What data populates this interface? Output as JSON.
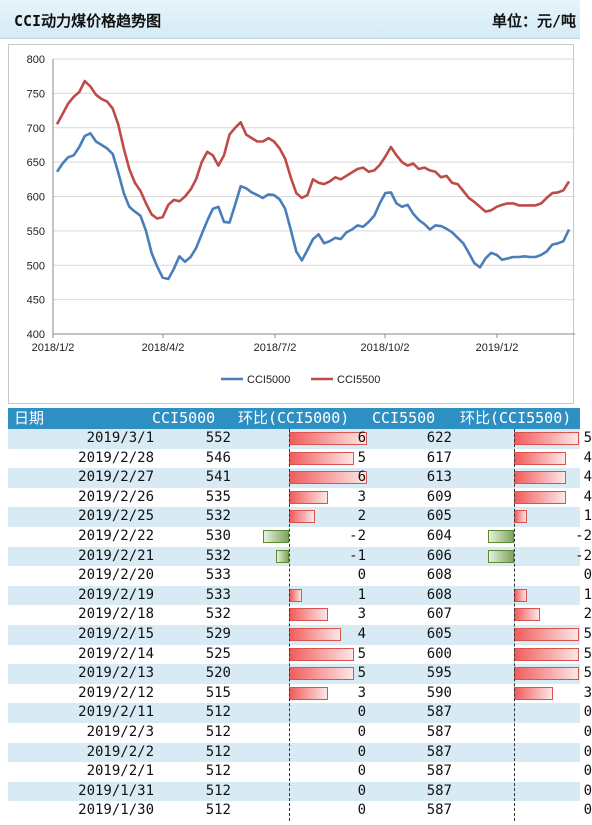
{
  "header": {
    "title": "CCI动力煤价格趋势图",
    "unit": "单位：元/吨"
  },
  "chart_data": {
    "type": "line",
    "x_ticks": [
      "2018/1/2",
      "2018/4/2",
      "2018/7/2",
      "2018/10/2",
      "2019/1/2"
    ],
    "ylim": [
      400,
      800
    ],
    "y_ticks": [
      "800",
      "750",
      "700",
      "650",
      "600",
      "550",
      "500",
      "450",
      "400"
    ],
    "grid": true,
    "legend_position": "bottom",
    "series": [
      {
        "name": "CCI5000",
        "color": "#4a7ebb",
        "values": [
          636,
          648,
          657,
          660,
          672,
          688,
          692,
          680,
          675,
          670,
          662,
          635,
          605,
          585,
          578,
          572,
          550,
          518,
          498,
          482,
          480,
          495,
          513,
          505,
          512,
          525,
          545,
          565,
          582,
          585,
          563,
          562,
          588,
          615,
          612,
          606,
          602,
          598,
          603,
          602,
          596,
          582,
          552,
          520,
          507,
          522,
          538,
          545,
          532,
          535,
          540,
          538,
          548,
          552,
          558,
          556,
          563,
          572,
          590,
          605,
          606,
          590,
          585,
          588,
          575,
          566,
          560,
          552,
          558,
          557,
          553,
          548,
          540,
          532,
          518,
          503,
          497,
          510,
          518,
          515,
          508,
          510,
          512,
          512,
          513,
          512,
          512,
          515,
          520,
          530,
          532,
          535,
          552
        ]
      },
      {
        "name": "CCI5500",
        "color": "#be4b48",
        "values": [
          705,
          720,
          735,
          745,
          752,
          768,
          760,
          748,
          742,
          738,
          728,
          705,
          670,
          640,
          620,
          608,
          590,
          574,
          568,
          570,
          588,
          595,
          593,
          600,
          610,
          625,
          650,
          665,
          660,
          645,
          660,
          690,
          700,
          708,
          690,
          685,
          680,
          680,
          685,
          680,
          670,
          655,
          628,
          605,
          598,
          602,
          625,
          620,
          618,
          622,
          628,
          625,
          630,
          635,
          640,
          642,
          636,
          638,
          646,
          658,
          672,
          660,
          650,
          645,
          648,
          640,
          642,
          638,
          636,
          628,
          630,
          620,
          618,
          608,
          598,
          592,
          585,
          578,
          580,
          585,
          588,
          590,
          590,
          587,
          587,
          587,
          587,
          590,
          598,
          605,
          606,
          609,
          622
        ]
      }
    ]
  },
  "table": {
    "headers": [
      "日期",
      "CCI5000",
      "环比(CCI5000)",
      "CCI5500",
      "环比(CCI5500)"
    ],
    "rows": [
      {
        "date": "2019/3/1",
        "cci5000": "552",
        "chg5000": "6",
        "cci5500": "622",
        "chg5500": "5"
      },
      {
        "date": "2019/2/28",
        "cci5000": "546",
        "chg5000": "5",
        "cci5500": "617",
        "chg5500": "4"
      },
      {
        "date": "2019/2/27",
        "cci5000": "541",
        "chg5000": "6",
        "cci5500": "613",
        "chg5500": "4"
      },
      {
        "date": "2019/2/26",
        "cci5000": "535",
        "chg5000": "3",
        "cci5500": "609",
        "chg5500": "4"
      },
      {
        "date": "2019/2/25",
        "cci5000": "532",
        "chg5000": "2",
        "cci5500": "605",
        "chg5500": "1"
      },
      {
        "date": "2019/2/22",
        "cci5000": "530",
        "chg5000": "-2",
        "cci5500": "604",
        "chg5500": "-2"
      },
      {
        "date": "2019/2/21",
        "cci5000": "532",
        "chg5000": "-1",
        "cci5500": "606",
        "chg5500": "-2"
      },
      {
        "date": "2019/2/20",
        "cci5000": "533",
        "chg5000": "0",
        "cci5500": "608",
        "chg5500": "0"
      },
      {
        "date": "2019/2/19",
        "cci5000": "533",
        "chg5000": "1",
        "cci5500": "608",
        "chg5500": "1"
      },
      {
        "date": "2019/2/18",
        "cci5000": "532",
        "chg5000": "3",
        "cci5500": "607",
        "chg5500": "2"
      },
      {
        "date": "2019/2/15",
        "cci5000": "529",
        "chg5000": "4",
        "cci5500": "605",
        "chg5500": "5"
      },
      {
        "date": "2019/2/14",
        "cci5000": "525",
        "chg5000": "5",
        "cci5500": "600",
        "chg5500": "5"
      },
      {
        "date": "2019/2/13",
        "cci5000": "520",
        "chg5000": "5",
        "cci5500": "595",
        "chg5500": "5"
      },
      {
        "date": "2019/2/12",
        "cci5000": "515",
        "chg5000": "3",
        "cci5500": "590",
        "chg5500": "3"
      },
      {
        "date": "2019/2/11",
        "cci5000": "512",
        "chg5000": "0",
        "cci5500": "587",
        "chg5500": "0"
      },
      {
        "date": "2019/2/3",
        "cci5000": "512",
        "chg5000": "0",
        "cci5500": "587",
        "chg5500": "0"
      },
      {
        "date": "2019/2/2",
        "cci5000": "512",
        "chg5000": "0",
        "cci5500": "587",
        "chg5500": "0"
      },
      {
        "date": "2019/2/1",
        "cci5000": "512",
        "chg5000": "0",
        "cci5500": "587",
        "chg5500": "0"
      },
      {
        "date": "2019/1/31",
        "cci5000": "512",
        "chg5000": "0",
        "cci5500": "587",
        "chg5500": "0"
      },
      {
        "date": "2019/1/30",
        "cci5000": "512",
        "chg5000": "0",
        "cci5500": "587",
        "chg5500": "0"
      }
    ]
  },
  "colors": {
    "header_bg": "#2e8fc2",
    "row_alt": "#d8ebf5",
    "pos_bar": "#f25c5c",
    "neg_bar": "#7fa55a"
  }
}
